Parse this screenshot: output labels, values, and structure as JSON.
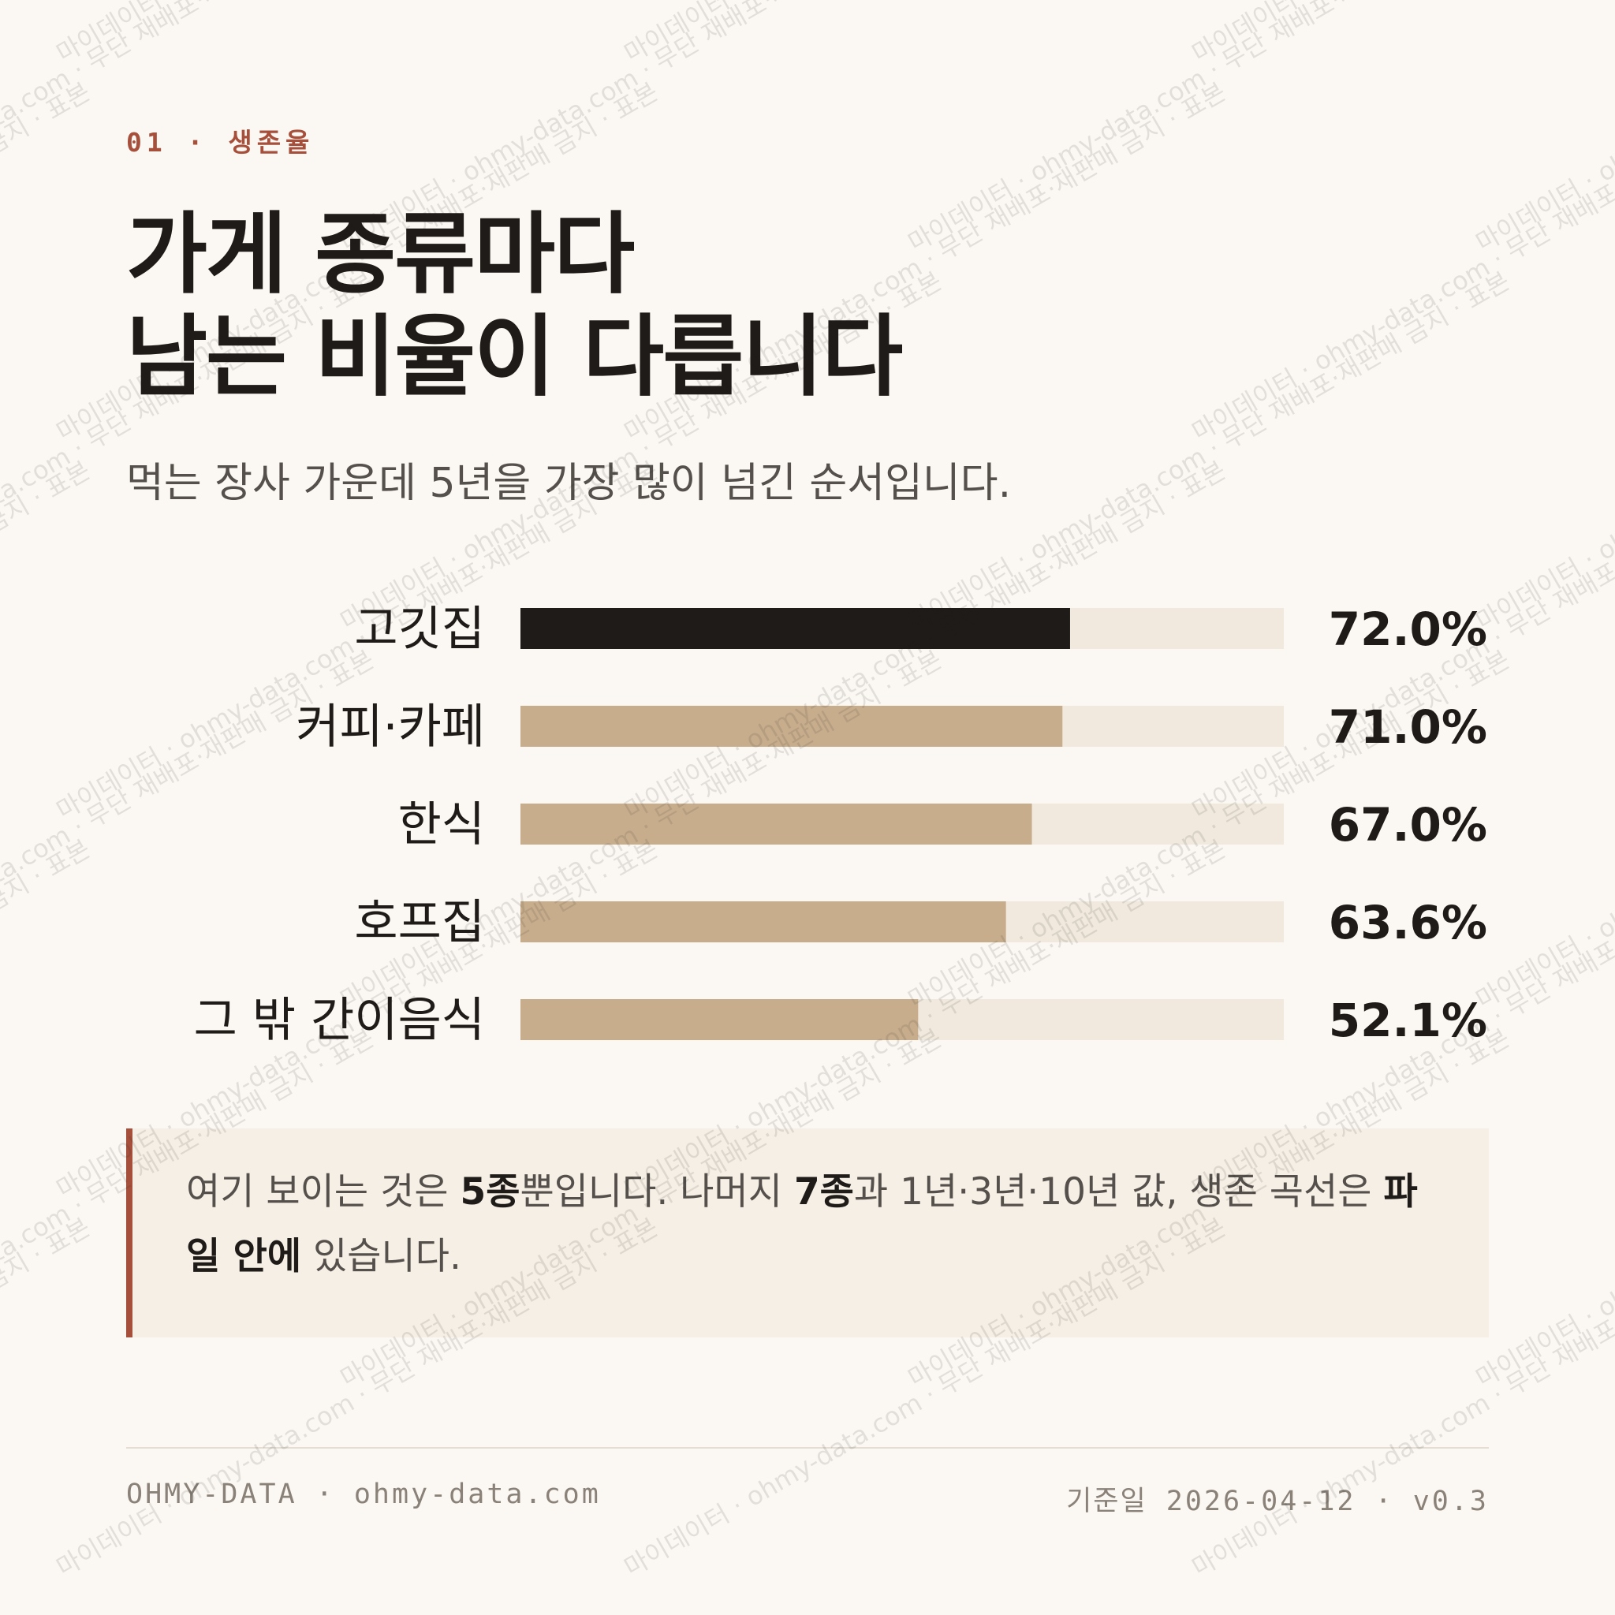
{
  "header": {
    "eyebrow": "01 · 생존율",
    "title_line1": "가게 종류마다",
    "title_line2": "남는 비율이 다릅니다",
    "subtitle": "먹는 장사 가운데 5년을 가장 많이 넘긴 순서입니다."
  },
  "chart_data": {
    "type": "bar",
    "orientation": "horizontal",
    "categories": [
      "고깃집",
      "커피·카페",
      "한식",
      "호프집",
      "그 밖 간이음식"
    ],
    "values": [
      72.0,
      71.0,
      67.0,
      63.6,
      52.1
    ],
    "value_labels": [
      "72.0%",
      "71.0%",
      "67.0%",
      "63.6%",
      "52.1%"
    ],
    "unit": "%",
    "xlim": [
      0,
      100
    ],
    "highlight_index": 0,
    "colors": {
      "highlight": "#1f1b18",
      "bar": "#c8ad8d",
      "track": "#f1e9dd"
    },
    "grid": false,
    "legend": "none"
  },
  "note": {
    "part1": "여기 보이는 것은 ",
    "bold1": "5종",
    "part2": "뿐입니다. 나머지 ",
    "bold2": "7종",
    "part3": "과 1년·3년·10년 값, 생존 곡선은 ",
    "bold3": "파일 안에",
    "part4": " 있습니다."
  },
  "footer": {
    "left": "OHMY-DATA · ohmy-data.com",
    "date_label": "기준일",
    "date_value": " 2026-04-12 · v0.3"
  },
  "watermark": {
    "text": "마이데이터 · ohmy-data.com · 무단 재배포·재판매 금지 · 표본"
  },
  "colors": {
    "background": "#fbf8f3",
    "accent": "#a6503c",
    "text": "#1f1b18"
  }
}
